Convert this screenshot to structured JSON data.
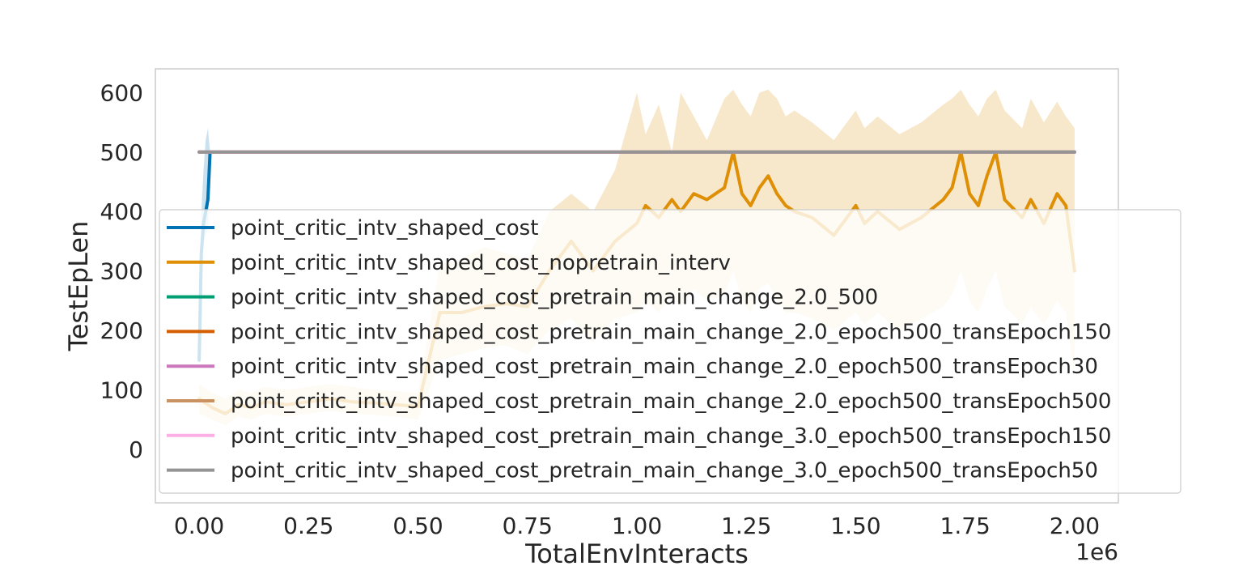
{
  "chart_data": {
    "type": "line",
    "title": "",
    "xlabel": "TotalEnvInteracts",
    "ylabel": "TestEpLen",
    "x_offset_label": "1e6",
    "xlim": [
      -0.1,
      2.1
    ],
    "ylim": [
      -90,
      640
    ],
    "xticks": [
      0.0,
      0.25,
      0.5,
      0.75,
      1.0,
      1.25,
      1.5,
      1.75,
      2.0
    ],
    "xtick_labels": [
      "0.00",
      "0.25",
      "0.50",
      "0.75",
      "1.00",
      "1.25",
      "1.50",
      "1.75",
      "2.00"
    ],
    "yticks": [
      0,
      100,
      200,
      300,
      400,
      500,
      600
    ],
    "ytick_labels": [
      "0",
      "100",
      "200",
      "300",
      "400",
      "500",
      "600"
    ],
    "grid": false,
    "legend_position": "lower-right",
    "series": [
      {
        "name": "point_critic_intv_shaped_cost",
        "color": "#0173b2",
        "band_color": "#a6cfe6",
        "x": [
          0.0,
          0.005,
          0.01,
          0.015,
          0.02,
          0.025
        ],
        "y": [
          150,
          330,
          380,
          400,
          420,
          500
        ],
        "band_low": [
          140,
          300,
          350,
          360,
          370,
          470
        ],
        "band_high": [
          200,
          400,
          470,
          520,
          540,
          500
        ]
      },
      {
        "name": "point_critic_intv_shaped_cost_nopretrain_interv",
        "color": "#de8f05",
        "band_color": "#f3d9a8",
        "x": [
          0.0,
          0.03,
          0.06,
          0.09,
          0.12,
          0.15,
          0.2,
          0.25,
          0.3,
          0.35,
          0.4,
          0.45,
          0.5,
          0.55,
          0.6,
          0.65,
          0.7,
          0.75,
          0.8,
          0.85,
          0.9,
          0.95,
          1.0,
          1.02,
          1.05,
          1.08,
          1.1,
          1.13,
          1.16,
          1.2,
          1.22,
          1.24,
          1.26,
          1.28,
          1.3,
          1.32,
          1.34,
          1.36,
          1.4,
          1.45,
          1.5,
          1.52,
          1.55,
          1.6,
          1.65,
          1.7,
          1.72,
          1.74,
          1.76,
          1.78,
          1.8,
          1.82,
          1.84,
          1.88,
          1.9,
          1.93,
          1.96,
          1.98,
          2.0
        ],
        "y": [
          85,
          70,
          60,
          75,
          70,
          80,
          75,
          80,
          85,
          80,
          78,
          75,
          72,
          230,
          230,
          240,
          245,
          240,
          300,
          350,
          300,
          350,
          380,
          410,
          390,
          420,
          400,
          430,
          420,
          440,
          500,
          430,
          410,
          440,
          460,
          430,
          410,
          400,
          390,
          360,
          410,
          380,
          400,
          370,
          390,
          420,
          440,
          500,
          430,
          410,
          460,
          500,
          420,
          390,
          420,
          380,
          430,
          410,
          300
        ],
        "band_low": [
          60,
          50,
          40,
          55,
          50,
          60,
          55,
          60,
          65,
          60,
          58,
          55,
          50,
          150,
          160,
          170,
          175,
          160,
          200,
          220,
          180,
          220,
          230,
          250,
          230,
          260,
          240,
          270,
          250,
          260,
          300,
          250,
          230,
          270,
          280,
          250,
          230,
          230,
          220,
          200,
          230,
          210,
          230,
          200,
          220,
          240,
          260,
          300,
          250,
          230,
          270,
          300,
          240,
          210,
          240,
          210,
          250,
          230,
          120
        ],
        "band_high": [
          110,
          95,
          85,
          100,
          95,
          105,
          100,
          105,
          110,
          105,
          100,
          98,
          95,
          310,
          320,
          340,
          330,
          320,
          400,
          430,
          400,
          470,
          600,
          530,
          580,
          500,
          600,
          560,
          520,
          590,
          605,
          580,
          560,
          600,
          605,
          590,
          560,
          570,
          550,
          520,
          570,
          540,
          560,
          530,
          550,
          580,
          590,
          605,
          580,
          560,
          590,
          605,
          570,
          540,
          590,
          550,
          585,
          560,
          540
        ]
      },
      {
        "name": "point_critic_intv_shaped_cost_pretrain_main_change_2.0_500",
        "color": "#029e73",
        "x": [
          0.0,
          2.0
        ],
        "y": [
          500,
          500
        ]
      },
      {
        "name": "point_critic_intv_shaped_cost_pretrain_main_change_2.0_epoch500_transEpoch150",
        "color": "#d55e00",
        "x": [
          0.0,
          2.0
        ],
        "y": [
          500,
          500
        ]
      },
      {
        "name": "point_critic_intv_shaped_cost_pretrain_main_change_2.0_epoch500_transEpoch30",
        "color": "#cc78bc",
        "x": [
          0.0,
          2.0
        ],
        "y": [
          500,
          500
        ]
      },
      {
        "name": "point_critic_intv_shaped_cost_pretrain_main_change_2.0_epoch500_transEpoch500",
        "color": "#ca9161",
        "x": [
          0.0,
          2.0
        ],
        "y": [
          500,
          500
        ]
      },
      {
        "name": "point_critic_intv_shaped_cost_pretrain_main_change_3.0_epoch500_transEpoch150",
        "color": "#fbafe4",
        "x": [
          0.0,
          2.0
        ],
        "y": [
          500,
          500
        ]
      },
      {
        "name": "point_critic_intv_shaped_cost_pretrain_main_change_3.0_epoch500_transEpoch50",
        "color": "#949494",
        "x": [
          0.0,
          2.0
        ],
        "y": [
          500,
          500
        ]
      }
    ]
  }
}
